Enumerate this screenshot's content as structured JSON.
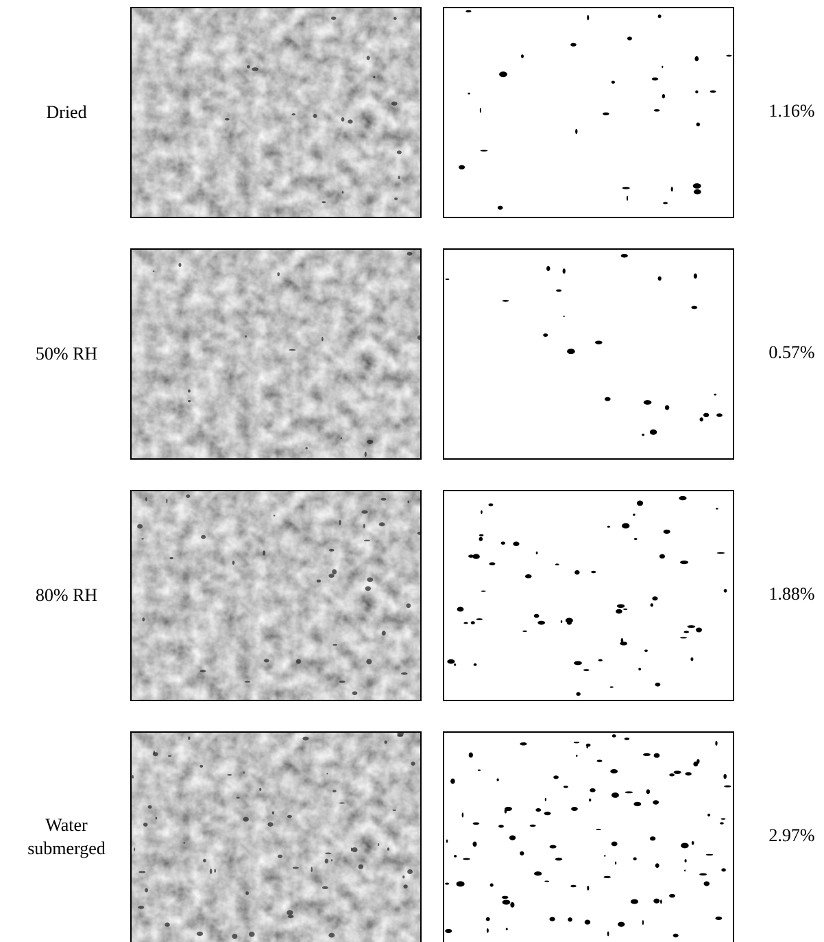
{
  "rows": [
    {
      "label": "Dried",
      "porosity": "1.16%"
    },
    {
      "label": "50% RH",
      "porosity": "0.57%"
    },
    {
      "label": "80% RH",
      "porosity": "1.88%"
    },
    {
      "label": "Water submerged",
      "porosity": "2.97%"
    }
  ]
}
